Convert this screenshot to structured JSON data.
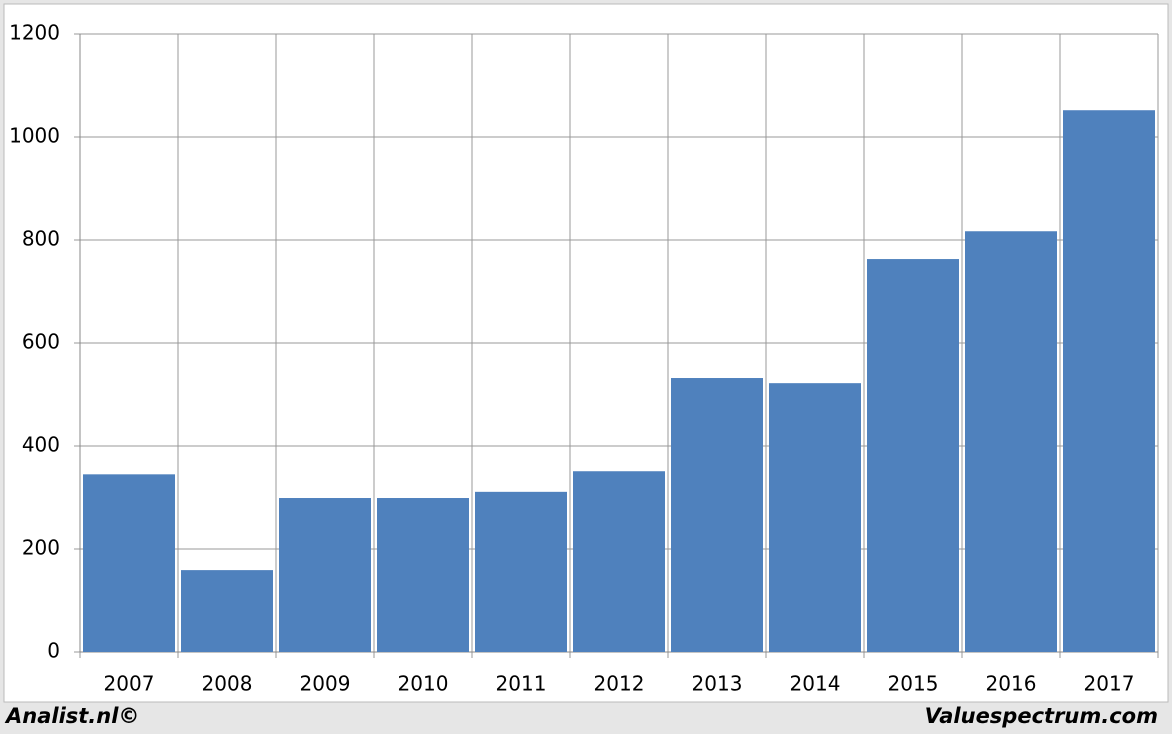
{
  "chart_data": {
    "type": "bar",
    "categories": [
      "2007",
      "2008",
      "2009",
      "2010",
      "2011",
      "2012",
      "2013",
      "2014",
      "2015",
      "2016",
      "2017"
    ],
    "values": [
      345,
      159,
      299,
      299,
      311,
      351,
      532,
      522,
      763,
      817,
      1052
    ],
    "color": "#4f81bd",
    "ylim": [
      0,
      1200
    ],
    "yticks": [
      0,
      200,
      400,
      600,
      800,
      1000,
      1200
    ],
    "grid": true
  },
  "footer": {
    "left": "Analist.nl©",
    "right": "Valuespectrum.com"
  }
}
